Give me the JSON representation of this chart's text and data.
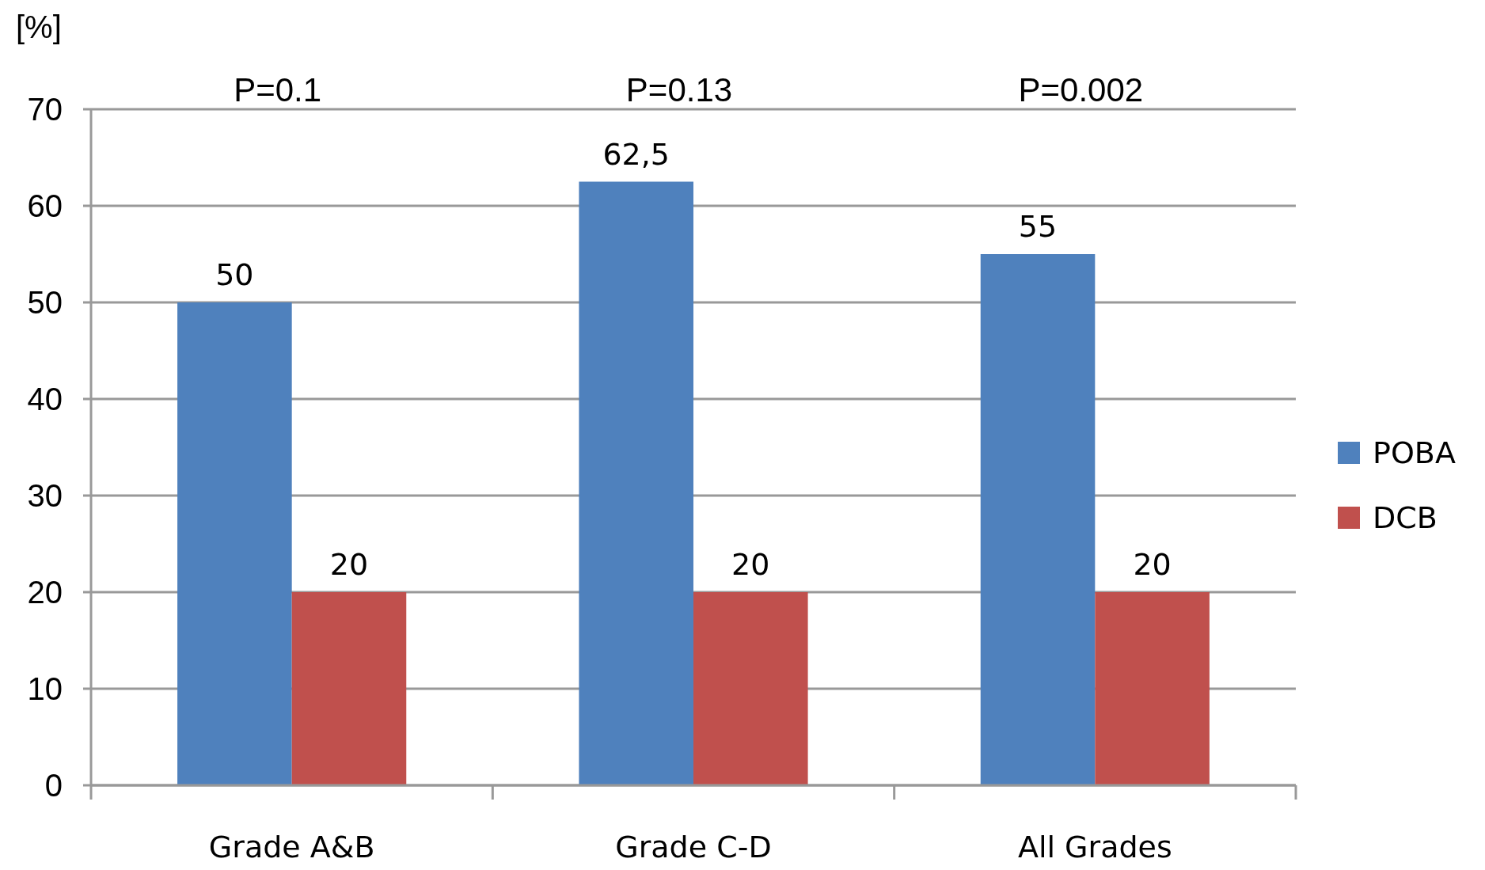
{
  "chart_data": {
    "type": "bar",
    "ylabel": "[%]",
    "categories": [
      "Grade A&B",
      "Grade C-D",
      "All Grades"
    ],
    "series": [
      {
        "name": "POBA",
        "color": "#4f81bd",
        "values": [
          50,
          62.5,
          55
        ],
        "value_labels": [
          "50",
          "62,5",
          "55"
        ]
      },
      {
        "name": "DCB",
        "color": "#c0504d",
        "values": [
          20,
          20,
          20
        ],
        "value_labels": [
          "20",
          "20",
          "20"
        ]
      }
    ],
    "ylim": [
      0,
      70
    ],
    "yticks": [
      0,
      10,
      20,
      30,
      40,
      50,
      60,
      70
    ],
    "grid": "y",
    "legend": "right",
    "annotations": [
      "P=0.1",
      "P=0.13",
      "P=0.002"
    ]
  }
}
